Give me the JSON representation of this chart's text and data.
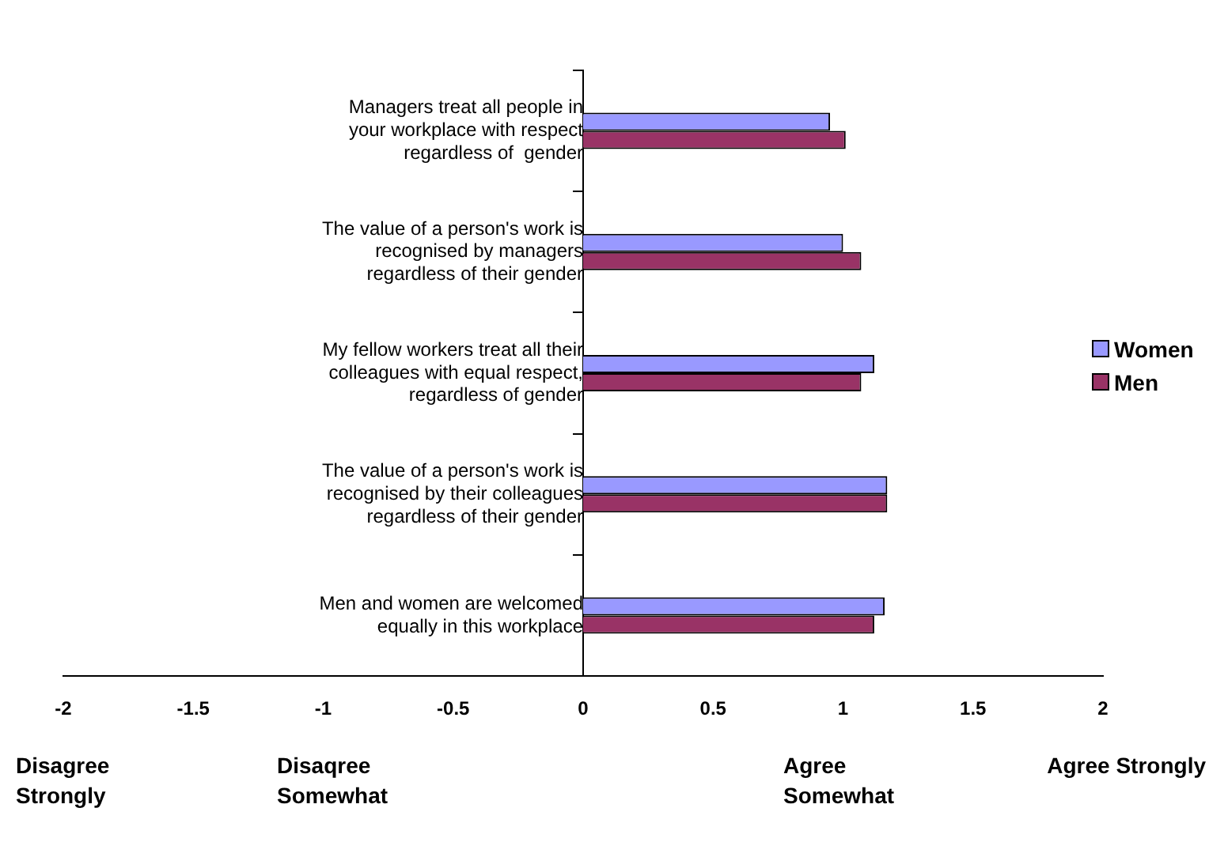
{
  "chart_data": {
    "type": "bar",
    "orientation": "horizontal",
    "categories": [
      "Managers treat all people in\nyour workplace with respect\nregardless of  gender",
      "The value of a person's work is\nrecognised by managers\nregardless of their gender",
      "My fellow workers treat all their\ncolleagues with equal respect,\nregardless of gender",
      "The value of a person's work is\nrecognised by their colleagues\nregardless of their gender",
      "Men and women are welcomed\nequally in this workplace"
    ],
    "series": [
      {
        "name": "Women",
        "color": "#9999ff",
        "values": [
          0.95,
          1.0,
          1.12,
          1.17,
          1.16
        ]
      },
      {
        "name": "Men",
        "color": "#993366",
        "values": [
          1.01,
          1.07,
          1.07,
          1.17,
          1.12
        ]
      }
    ],
    "xlim": [
      -2,
      2
    ],
    "xticks": [
      -2,
      -1.5,
      -1,
      -0.5,
      0,
      0.5,
      1,
      1.5,
      2
    ],
    "grid": false,
    "legend": "right",
    "annotations": [
      "Disagree\nStrongly",
      "Disaqree\nSomewhat",
      "Agree\nSomewhat",
      "Agree Strongly"
    ]
  }
}
